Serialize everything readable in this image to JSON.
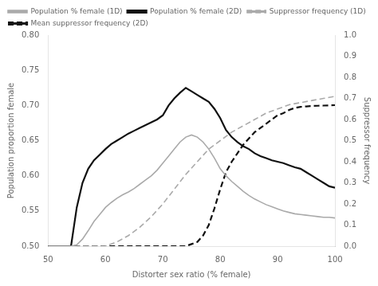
{
  "chart_data": {
    "type": "line",
    "xlabel": "Distorter sex ratio (% female)",
    "ylabel": "Population proportion female",
    "y2label": "Suppressor frequency",
    "xlim": [
      50,
      100
    ],
    "xticks": [
      50,
      60,
      70,
      80,
      90,
      100
    ],
    "ylim": [
      0.5,
      0.8
    ],
    "yticks": [
      {
        "value": 0.5,
        "label": "0.50"
      },
      0.55,
      {
        "value": 0.6,
        "label": "0.60"
      },
      0.65,
      {
        "value": 0.7,
        "label": "0.70"
      },
      0.75,
      {
        "value": 0.8,
        "label": "0.80"
      }
    ],
    "y2lim": [
      0.0,
      1.0
    ],
    "y2ticks": [
      {
        "value": 0.0,
        "label": "0.0"
      },
      0.1,
      0.2,
      0.3,
      0.4,
      0.5,
      0.6,
      0.7,
      0.8,
      0.9,
      {
        "value": 1.0,
        "label": "1.0"
      }
    ],
    "grid": false,
    "legend": "upper left",
    "series": [
      {
        "name": "Population % female (1D)",
        "color": "#aaaaaa",
        "line_style": "solid",
        "marker": "none",
        "x": [
          50,
          51,
          52,
          53,
          54,
          55,
          56,
          57,
          58,
          59,
          60,
          61,
          62,
          63,
          64,
          65,
          66,
          67,
          68,
          69,
          70,
          71,
          72,
          73,
          74,
          75,
          76,
          77,
          78,
          79,
          80,
          81,
          82,
          83,
          84,
          85,
          86,
          87,
          88,
          89,
          90,
          91,
          92,
          93,
          94,
          95,
          96,
          97,
          98,
          99,
          100
        ],
        "values": [
          0.5,
          0.5,
          0.5,
          0.5,
          0.5,
          0.502,
          0.51,
          0.522,
          0.535,
          0.545,
          0.555,
          0.562,
          0.568,
          0.573,
          0.577,
          0.582,
          0.588,
          0.594,
          0.6,
          0.608,
          0.618,
          0.628,
          0.638,
          0.648,
          0.655,
          0.658,
          0.655,
          0.648,
          0.638,
          0.625,
          0.61,
          0.6,
          0.592,
          0.585,
          0.578,
          0.572,
          0.567,
          0.563,
          0.559,
          0.556,
          0.553,
          0.55,
          0.548,
          0.546,
          0.545,
          0.544,
          0.543,
          0.542,
          0.541,
          0.541,
          0.54
        ]
      },
      {
        "name": "Population % female (2D)",
        "color": "#111111",
        "line_style": "solid",
        "marker": "none",
        "x": [
          50,
          51,
          52,
          53,
          54,
          55,
          56,
          57,
          58,
          59,
          60,
          61,
          62,
          63,
          64,
          65,
          66,
          67,
          68,
          69,
          70,
          71,
          72,
          73,
          74,
          75,
          76,
          77,
          78,
          79,
          80,
          81,
          82,
          83,
          84,
          85,
          86,
          87,
          88,
          89,
          90,
          91,
          92,
          93,
          94,
          95,
          96,
          97,
          98,
          99,
          100
        ],
        "values": [
          0.5,
          0.5,
          0.5,
          0.5,
          0.5,
          0.555,
          0.59,
          0.61,
          0.622,
          0.63,
          0.638,
          0.645,
          0.65,
          0.655,
          0.66,
          0.664,
          0.668,
          0.672,
          0.676,
          0.68,
          0.686,
          0.7,
          0.71,
          0.718,
          0.725,
          0.72,
          0.715,
          0.71,
          0.705,
          0.695,
          0.682,
          0.665,
          0.655,
          0.648,
          0.642,
          0.638,
          0.632,
          0.628,
          0.625,
          0.622,
          0.62,
          0.618,
          0.615,
          0.612,
          0.61,
          0.605,
          0.6,
          0.595,
          0.59,
          0.585,
          0.583
        ]
      },
      {
        "name": "Suppressor frequency (1D)",
        "color": "#aaaaaa",
        "line_style": "dashed",
        "marker": "none",
        "axis": "y2",
        "x": [
          50,
          55,
          60,
          62,
          64,
          66,
          68,
          70,
          72,
          74,
          76,
          78,
          80,
          82,
          84,
          86,
          88,
          90,
          92,
          94,
          96,
          98,
          100
        ],
        "values": [
          0.0,
          0.0,
          0.0,
          0.02,
          0.05,
          0.09,
          0.14,
          0.2,
          0.27,
          0.34,
          0.4,
          0.46,
          0.5,
          0.54,
          0.57,
          0.6,
          0.63,
          0.65,
          0.67,
          0.68,
          0.69,
          0.7,
          0.71
        ]
      },
      {
        "name": "Mean suppressor frequency\n(2D)",
        "color": "#111111",
        "line_style": "dashed",
        "marker": "none",
        "axis": "y2",
        "x": [
          50,
          55,
          60,
          65,
          68,
          70,
          71,
          72,
          73,
          74,
          75,
          76,
          77,
          78,
          79,
          80,
          81,
          82,
          83,
          84,
          85,
          86,
          87,
          88,
          89,
          90,
          91,
          92,
          93,
          94,
          95,
          96,
          97,
          98,
          99,
          100
        ],
        "values": [
          0.0,
          0.0,
          0.0,
          0.0,
          0.0,
          0.0,
          0.0,
          0.0,
          0.0,
          0.0,
          0.01,
          0.02,
          0.05,
          0.1,
          0.18,
          0.27,
          0.35,
          0.4,
          0.44,
          0.48,
          0.51,
          0.54,
          0.56,
          0.58,
          0.6,
          0.62,
          0.63,
          0.645,
          0.655,
          0.66,
          0.662,
          0.664,
          0.665,
          0.666,
          0.667,
          0.668
        ]
      }
    ]
  }
}
